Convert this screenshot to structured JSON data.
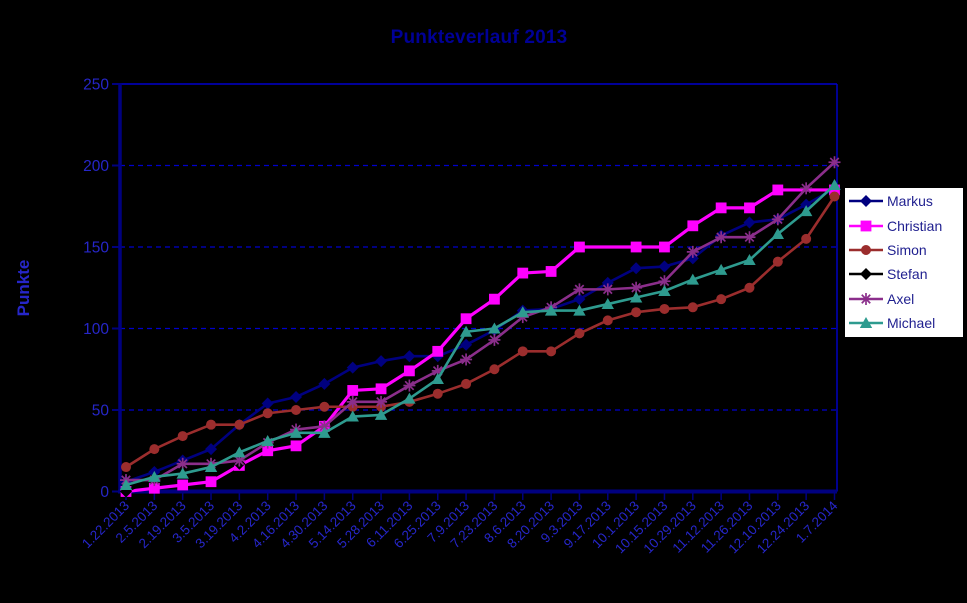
{
  "window": {
    "background": "#000000"
  },
  "colors": {
    "axis": "#000080",
    "grid": "#0000CC",
    "tick_label": "#2626C9",
    "title": "#000096",
    "y_title": "#2626C9",
    "legend_text": "#1F1F8F",
    "legend_bg": "#FFFFFF"
  },
  "chart_data": {
    "type": "line",
    "title": "Punkteverlauf 2013",
    "xlabel": "",
    "ylabel": "Punkte",
    "ylim": [
      0,
      250
    ],
    "y_ticks": [
      0,
      50,
      100,
      150,
      200,
      250
    ],
    "grid": "horizontal-dashed",
    "legend_position": "right",
    "legend_entries": [
      "Markus",
      "Christian",
      "Simon",
      "Stefan",
      "Axel",
      "Michael"
    ],
    "categories": [
      "1.22.2013",
      "2.5.2013",
      "2.19.2013",
      "3.5.2013",
      "3.19.2013",
      "4.2.2013",
      "4.16.2013",
      "4.30.2013",
      "5.14.2013",
      "5.28.2013",
      "6.11.2013",
      "6.25.2013",
      "7.9.2013",
      "7.23.2013",
      "8.6.2013",
      "8.20.2013",
      "9.3.2013",
      "9.17.2013",
      "10.1.2013",
      "10.15.2013",
      "10.29.2013",
      "11.12.2013",
      "11.26.2013",
      "12.10.2013",
      "12.24.2013",
      "1.7.2014"
    ],
    "series": [
      {
        "name": "Markus",
        "color": "#000080",
        "marker": "diamond",
        "values": [
          6,
          12,
          19,
          26,
          41,
          54,
          58,
          66,
          76,
          80,
          83,
          83,
          90,
          99,
          111,
          112,
          118,
          128,
          137,
          138,
          143,
          157,
          165,
          167,
          176,
          186
        ]
      },
      {
        "name": "Christian",
        "color": "#FF00FF",
        "marker": "square",
        "marker_gaps": [
          17,
          24
        ],
        "values": [
          0,
          2,
          4,
          6,
          16,
          25,
          28,
          40,
          62,
          63,
          74,
          86,
          106,
          118,
          134,
          135,
          150,
          150,
          150,
          150,
          163,
          174,
          174,
          185,
          185,
          185
        ]
      },
      {
        "name": "Simon",
        "color": "#9B2D2D",
        "marker": "circle",
        "values": [
          15,
          26,
          34,
          41,
          41,
          48,
          50,
          52,
          52,
          52,
          55,
          60,
          66,
          75,
          86,
          86,
          97,
          105,
          110,
          112,
          113,
          118,
          125,
          141,
          155,
          181
        ]
      },
      {
        "name": "Stefan",
        "color": "#000000",
        "marker": "diamond",
        "values": [
          0,
          8,
          16,
          16,
          17,
          null,
          null,
          null,
          null,
          null,
          null,
          null,
          null,
          null,
          null,
          null,
          null,
          null,
          null,
          null,
          null,
          null,
          null,
          null,
          null,
          null
        ]
      },
      {
        "name": "Axel",
        "color": "#8B2E8B",
        "marker": "asterisk",
        "values": [
          7,
          7,
          17,
          17,
          19,
          30,
          38,
          40,
          55,
          55,
          65,
          74,
          81,
          93,
          107,
          113,
          124,
          124,
          125,
          129,
          147,
          156,
          156,
          167,
          186,
          202
        ]
      },
      {
        "name": "Michael",
        "color": "#2E9B8F",
        "marker": "triangle",
        "values": [
          4,
          9,
          11,
          15,
          24,
          31,
          36,
          36,
          46,
          47,
          57,
          69,
          98,
          100,
          110,
          111,
          111,
          115,
          119,
          123,
          130,
          136,
          142,
          158,
          172,
          188
        ]
      }
    ]
  }
}
